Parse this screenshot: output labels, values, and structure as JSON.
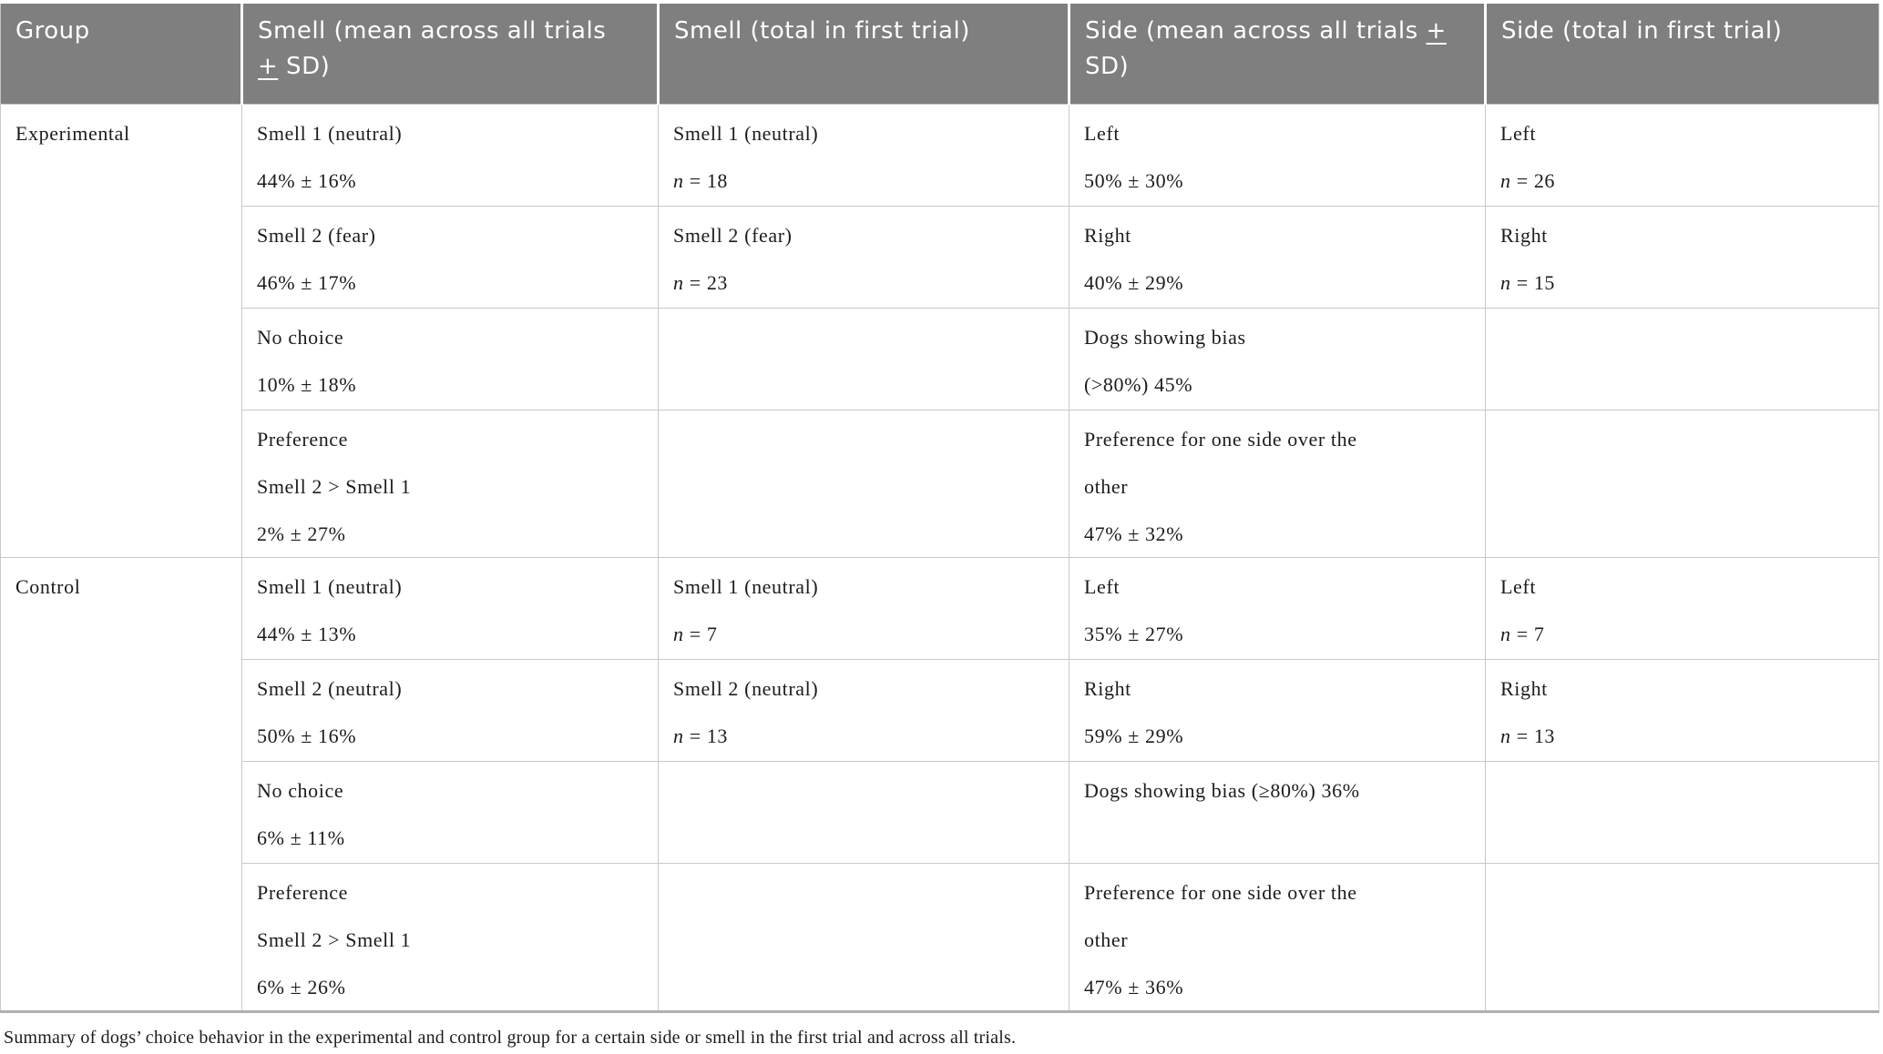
{
  "header": {
    "columns": [
      "Group",
      "Smell (mean across all trials ± SD)",
      "Smell (total in first trial)",
      "Side (mean across all trials ± SD)",
      "Side (total in first trial)"
    ]
  },
  "body": {
    "groups": [
      {
        "label": "Experimental",
        "rows": [
          {
            "smell_mean": [
              "Smell 1 (neutral)",
              "44% ± 16%"
            ],
            "smell_first": [
              "Smell 1 (neutral)",
              "n = 18"
            ],
            "side_mean": [
              "Left",
              "50% ± 30%"
            ],
            "side_first": [
              "Left",
              "n = 26"
            ]
          },
          {
            "smell_mean": [
              "Smell 2 (fear)",
              "46% ± 17%"
            ],
            "smell_first": [
              "Smell 2 (fear)",
              "n = 23"
            ],
            "side_mean": [
              "Right",
              "40% ± 29%"
            ],
            "side_first": [
              "Right",
              "n = 15"
            ]
          },
          {
            "smell_mean": [
              "No choice",
              "10% ± 18%"
            ],
            "smell_first": [],
            "side_mean": [
              "Dogs showing bias",
              "(>80%) 45%"
            ],
            "side_first": []
          },
          {
            "smell_mean": [
              "Preference",
              "Smell 2 > Smell 1",
              "2% ± 27%"
            ],
            "smell_first": [],
            "side_mean": [
              "Preference for one side over the",
              "other",
              "47% ± 32%"
            ],
            "side_first": []
          }
        ]
      },
      {
        "label": "Control",
        "rows": [
          {
            "smell_mean": [
              "Smell 1 (neutral)",
              "44% ± 13%"
            ],
            "smell_first": [
              "Smell 1 (neutral)",
              "n = 7"
            ],
            "side_mean": [
              "Left",
              "35% ± 27%"
            ],
            "side_first": [
              "Left",
              "n = 7"
            ]
          },
          {
            "smell_mean": [
              "Smell 2 (neutral)",
              "50% ± 16%"
            ],
            "smell_first": [
              "Smell 2 (neutral)",
              "n = 13"
            ],
            "side_mean": [
              "Right",
              "59% ± 29%"
            ],
            "side_first": [
              "Right",
              "n = 13"
            ]
          },
          {
            "smell_mean": [
              "No choice",
              "6% ± 11%"
            ],
            "smell_first": [],
            "side_mean": [
              "Dogs showing bias (≥80%) 36%"
            ],
            "side_first": []
          },
          {
            "smell_mean": [
              "Preference",
              "Smell 2 > Smell 1",
              "6% ± 26%"
            ],
            "smell_first": [],
            "side_mean": [
              "Preference for one side over the",
              "other",
              "47% ± 36%"
            ],
            "side_first": []
          }
        ]
      }
    ]
  },
  "caption": "Summary of dogs’ choice behavior in the experimental and control group for a certain side or smell in the first trial and across all trials.",
  "colors": {
    "header_bg": "#7f7f7f",
    "header_text": "#ffffff",
    "grid_line": "#c9c9c9",
    "outer_border": "#b0b0b0",
    "body_text": "#1c1c1c"
  }
}
